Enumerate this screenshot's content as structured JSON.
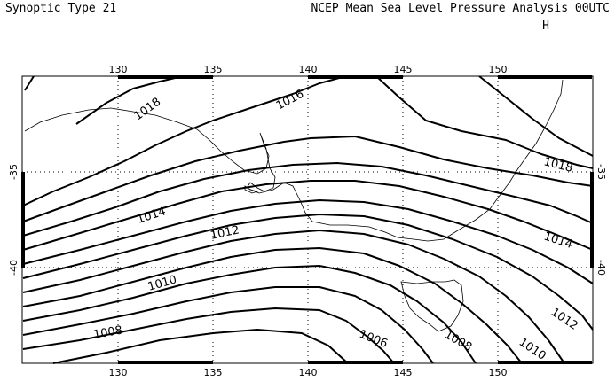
{
  "header": {
    "left_title": "Synoptic Type 21",
    "right_title": "NCEP Mean Sea Level Pressure Analysis 00UTC",
    "high_marker": "H"
  },
  "map": {
    "lon_range": [
      125,
      155
    ],
    "lat_range": [
      -45,
      -30
    ],
    "lon_ticks": [
      "130",
      "135",
      "140",
      "145",
      "150"
    ],
    "lat_ticks": [
      "-35",
      "-40"
    ],
    "gridlines": "dotted",
    "contour_labels": [
      "1016",
      "1018",
      "1018",
      "1014",
      "1012",
      "1014",
      "1010",
      "1012",
      "1008",
      "1006",
      "1008",
      "1010"
    ]
  }
}
